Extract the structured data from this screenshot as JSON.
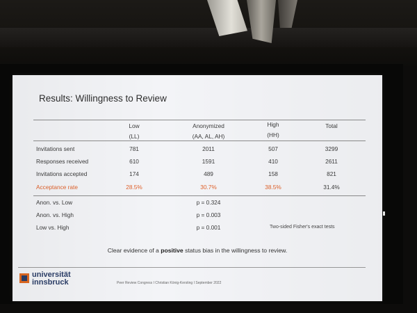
{
  "slide": {
    "title": "Results: Willingness to Review",
    "columns": [
      {
        "line1": "Low",
        "line2": "(LL)"
      },
      {
        "line1": "Anonymized",
        "line2": "(AA, AL, AH)"
      },
      {
        "line1": "High",
        "line2": "(HH)"
      },
      {
        "line1": "Total",
        "line2": ""
      }
    ],
    "rows": [
      {
        "label": "Invitations sent",
        "values": [
          "781",
          "2011",
          "507",
          "3299"
        ]
      },
      {
        "label": "Responses received",
        "values": [
          "610",
          "1591",
          "410",
          "2611"
        ]
      },
      {
        "label": "Invitations accepted",
        "values": [
          "174",
          "489",
          "158",
          "821"
        ]
      },
      {
        "label": "Acceptance rate",
        "values": [
          "28.5%",
          "30.7%",
          "38.5%",
          "31.4%"
        ],
        "highlight_color": "#e0622c"
      }
    ],
    "comparisons": [
      {
        "label": "Anon. vs. Low",
        "p": "p = 0.324"
      },
      {
        "label": "Anon. vs. High",
        "p": "p = 0.003"
      },
      {
        "label": "Low vs. High",
        "p": "p = 0.001"
      }
    ],
    "test_note": "Two-sided Fisher's exact tests",
    "conclusion_before": "Clear evidence of a ",
    "conclusion_bold": "positive",
    "conclusion_after": " status bias in the willingness to review.",
    "logo_line1": "universität",
    "logo_line2": "innsbruck",
    "footer": "Peer Review Congress I Christian König-Kersting I September 2022"
  },
  "colors": {
    "accent": "#e0622c",
    "logo_blue": "#2b3e68",
    "logo_orange": "#e06a22",
    "slide_bg": "#f3f4f7"
  }
}
